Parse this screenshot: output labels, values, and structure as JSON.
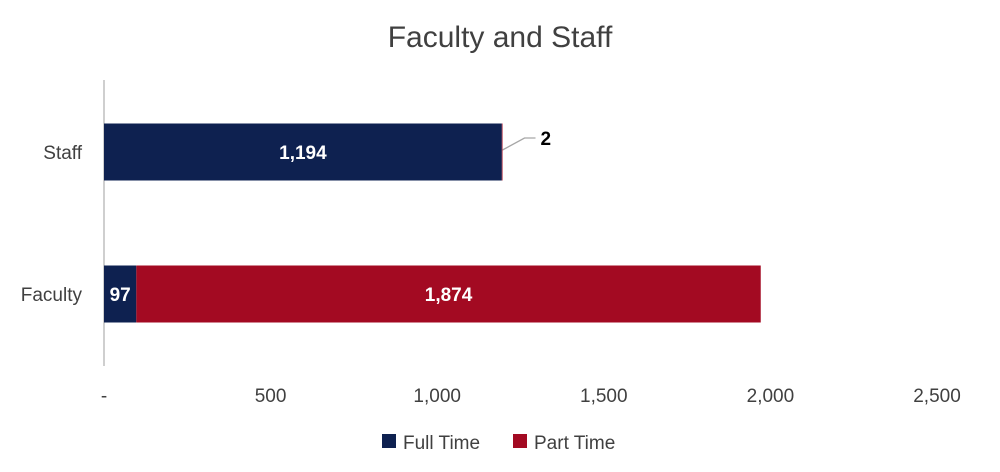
{
  "chart_data": {
    "type": "bar",
    "orientation": "horizontal",
    "stacked": true,
    "title": "Faculty and Staff",
    "categories": [
      "Staff",
      "Faculty"
    ],
    "series": [
      {
        "name": "Full Time",
        "color": "#0e2150",
        "values": [
          1194,
          97
        ],
        "labels": [
          "1,194",
          "97"
        ]
      },
      {
        "name": "Part Time",
        "color": "#a30a22",
        "values": [
          2,
          1874
        ],
        "labels": [
          "2",
          "1,874"
        ]
      }
    ],
    "xaxis": {
      "min": 0,
      "max": 2500,
      "ticks": [
        0,
        500,
        1000,
        1500,
        2000,
        2500
      ],
      "tick_labels": [
        "-",
        "500",
        "1,000",
        "1,500",
        "2,000",
        "2,500"
      ]
    },
    "grid": false,
    "legend_position": "bottom"
  }
}
